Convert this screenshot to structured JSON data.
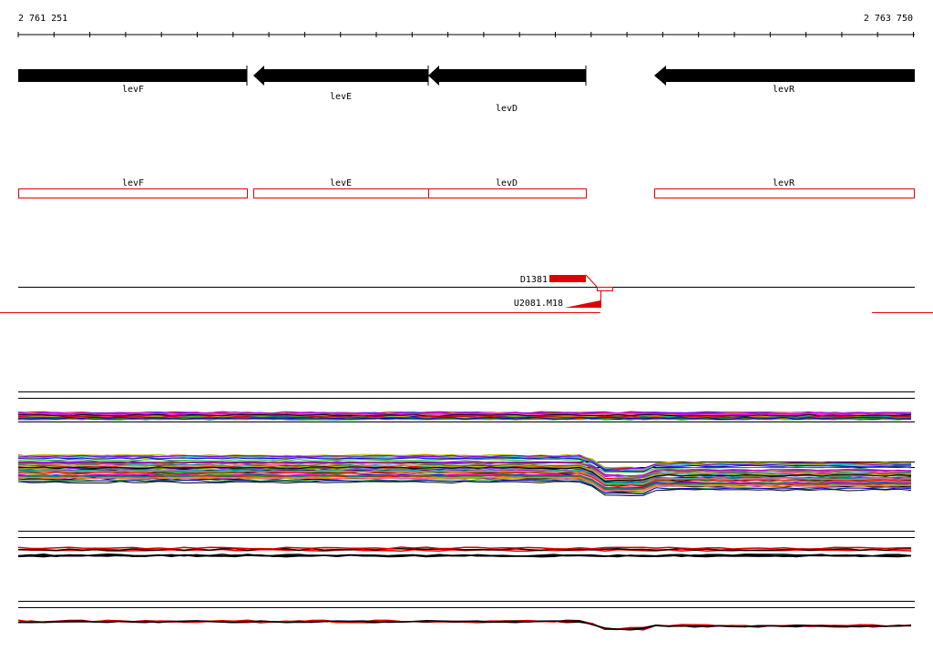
{
  "ruler": {
    "start": "2 761 251",
    "end": "2 763 750"
  },
  "genes": [
    {
      "label": "levF"
    },
    {
      "label": "levE"
    },
    {
      "label": "levD"
    },
    {
      "label": "levR"
    }
  ],
  "annotations": [
    {
      "label": "levF"
    },
    {
      "label": "levE"
    },
    {
      "label": "levD"
    },
    {
      "label": "levR"
    }
  ],
  "features": [
    {
      "label": "D1381"
    },
    {
      "label": "U2081.M18"
    }
  ]
}
